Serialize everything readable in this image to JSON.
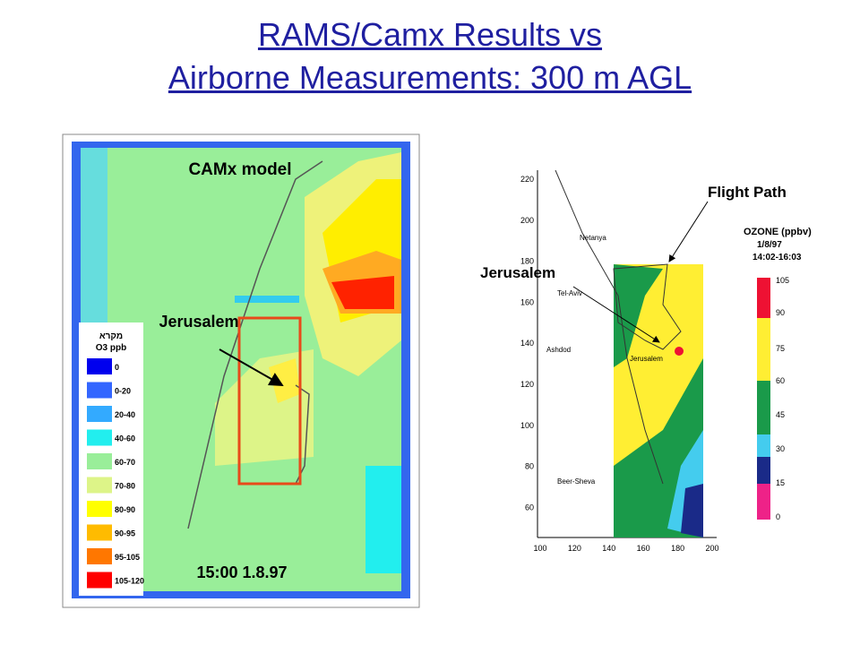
{
  "header": {
    "title_line1": "RAMS/Camx Results vs",
    "title_line2": "Airborne Measurements: 300 m AGL"
  },
  "left_map": {
    "model_label": "CAMx model",
    "city_label": "Jerusalem",
    "timestamp": "15:00 1.8.97",
    "legend": {
      "title": "מקרא",
      "subtitle": "O3 ppb",
      "entries": [
        "0",
        "0-20",
        "20-40",
        "40-60",
        "60-70",
        "70-80",
        "80-90",
        "90-95",
        "95-105",
        "105-120"
      ]
    }
  },
  "right_map": {
    "flight_label": "Flight Path",
    "city_label": "Jerusalem",
    "scale_title": "OZONE (ppbv)",
    "date": "1/8/97",
    "time": "14:02-16:03",
    "scale_labels": [
      "105",
      "90",
      "75",
      "60",
      "45",
      "30",
      "15",
      "0"
    ],
    "y_labels": [
      "220",
      "200",
      "180",
      "160",
      "140",
      "120",
      "100",
      "80",
      "60"
    ],
    "x_labels": [
      "100",
      "120",
      "140",
      "160",
      "180",
      "200"
    ],
    "places": [
      "Netanya",
      "Tel-Aviv",
      "Ashdod",
      "Jerusalem",
      "Beer-Sheva"
    ]
  }
}
